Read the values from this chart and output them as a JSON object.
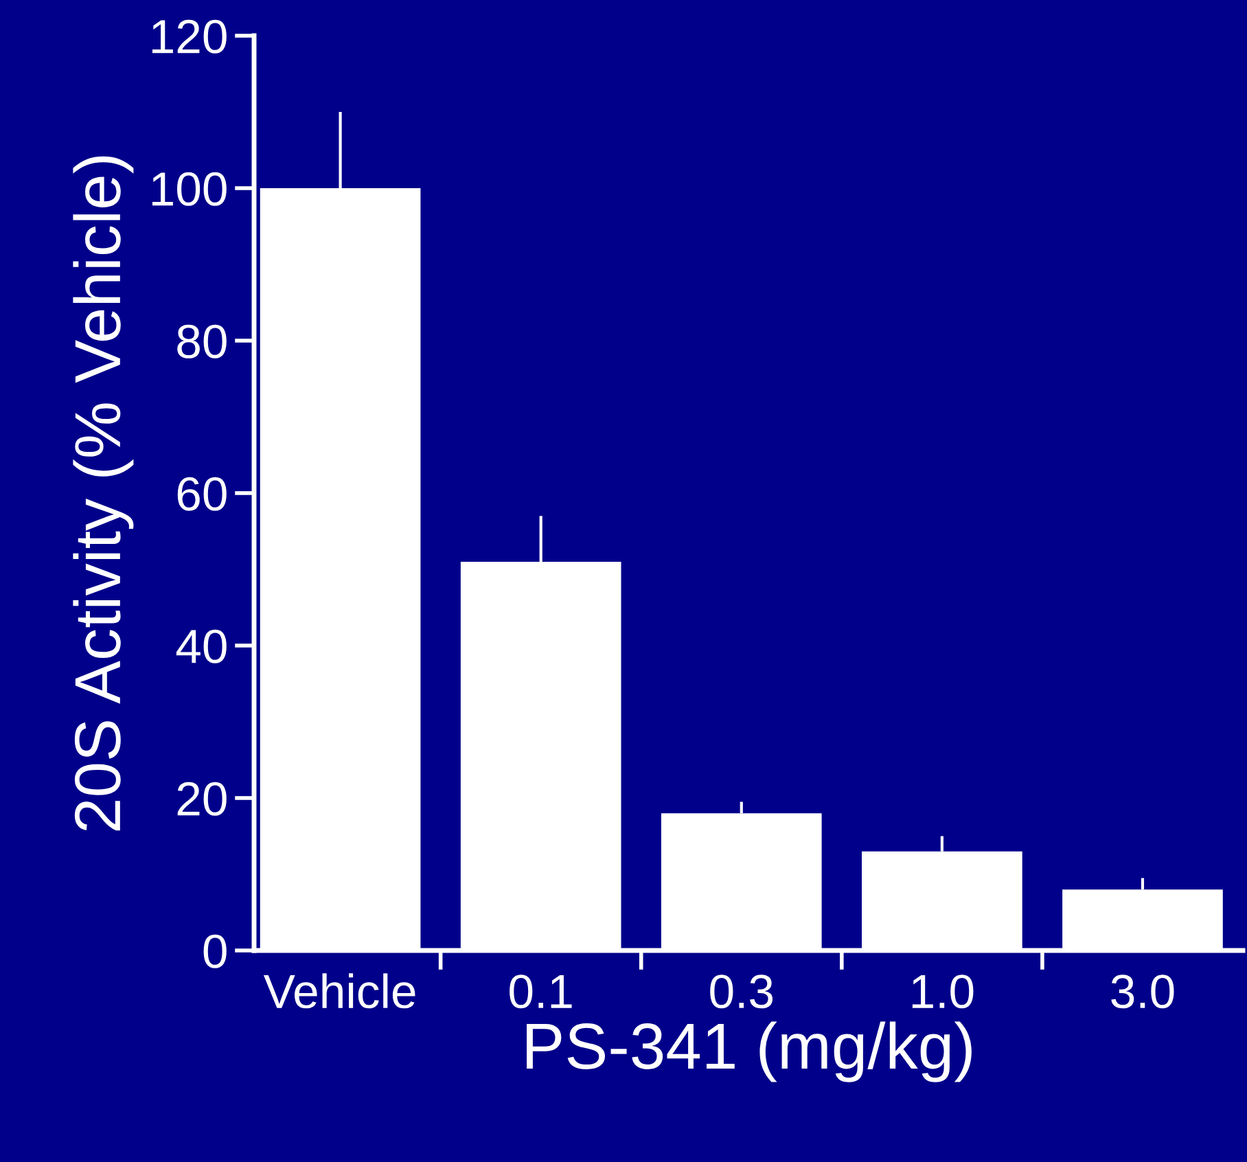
{
  "chart_data": {
    "type": "bar",
    "xlabel": "PS-341 (mg/kg)",
    "ylabel": "20S Activity (% Vehicle)",
    "categories": [
      "Vehicle",
      "0.1",
      "0.3",
      "1.0",
      "3.0"
    ],
    "values": [
      100,
      51,
      18,
      13,
      8
    ],
    "errors": [
      [
        100,
        110
      ],
      [
        51,
        57
      ],
      [
        18,
        19.5
      ],
      [
        13,
        15
      ],
      [
        8,
        9.5
      ]
    ],
    "color": "#ffffff",
    "ylim": [
      0,
      120
    ],
    "yticks": [
      0,
      20,
      40,
      60,
      80,
      100,
      120
    ],
    "grid": false,
    "legend": false
  }
}
